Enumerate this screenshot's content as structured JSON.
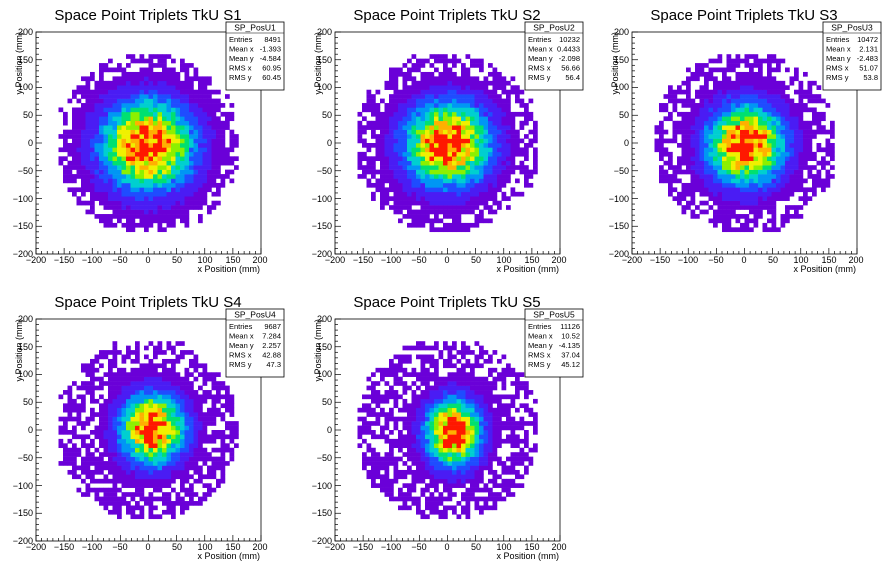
{
  "chart_data": [
    {
      "type": "heatmap",
      "title": "Space Point Triplets TkU S1",
      "xlabel": "x Position (mm)",
      "ylabel": "y Position (mm)",
      "xlim": [
        -200,
        200
      ],
      "ylim": [
        -200,
        200
      ],
      "xticks": [
        "−200",
        "−150",
        "−100",
        "−50",
        "0",
        "50",
        "100",
        "150",
        "200"
      ],
      "yticks": [
        "200",
        "150",
        "100",
        "50",
        "0",
        "−50",
        "−100",
        "−150",
        "−200"
      ],
      "stats": {
        "name": "SP_PosU1",
        "rows": [
          {
            "label": "Entries",
            "value": "8491"
          },
          {
            "label": "Mean x",
            "value": "-1.393"
          },
          {
            "label": "Mean y",
            "value": "-4.584"
          },
          {
            "label": "RMS x",
            "value": "60.95"
          },
          {
            "label": "RMS y",
            "value": "60.45"
          }
        ]
      },
      "distribution": {
        "radius": 160,
        "mean": [
          -1.393,
          -4.584
        ],
        "rms": [
          60.95,
          60.45
        ],
        "entries": 8491,
        "bin_size": 8
      }
    },
    {
      "type": "heatmap",
      "title": "Space Point Triplets TkU S2",
      "xlabel": "x Position (mm)",
      "ylabel": "y Position (mm)",
      "xlim": [
        -200,
        200
      ],
      "ylim": [
        -200,
        200
      ],
      "xticks": [
        "−200",
        "−150",
        "−100",
        "−50",
        "0",
        "50",
        "100",
        "150",
        "200"
      ],
      "yticks": [
        "200",
        "150",
        "100",
        "50",
        "0",
        "−50",
        "−100",
        "−150",
        "−200"
      ],
      "stats": {
        "name": "SP_PosU2",
        "rows": [
          {
            "label": "Entries",
            "value": "10232"
          },
          {
            "label": "Mean x",
            "value": "0.4433"
          },
          {
            "label": "Mean y",
            "value": "-2.098"
          },
          {
            "label": "RMS x",
            "value": "56.66"
          },
          {
            "label": "RMS y",
            "value": "56.4"
          }
        ]
      },
      "distribution": {
        "radius": 160,
        "mean": [
          0.4433,
          -2.098
        ],
        "rms": [
          56.66,
          56.4
        ],
        "entries": 10232,
        "bin_size": 8
      }
    },
    {
      "type": "heatmap",
      "title": "Space Point Triplets TkU S3",
      "xlabel": "x Position (mm)",
      "ylabel": "y Position (mm)",
      "xlim": [
        -200,
        200
      ],
      "ylim": [
        -200,
        200
      ],
      "xticks": [
        "−200",
        "−150",
        "−100",
        "−50",
        "0",
        "50",
        "100",
        "150",
        "200"
      ],
      "yticks": [
        "200",
        "150",
        "100",
        "50",
        "0",
        "−50",
        "−100",
        "−150",
        "−200"
      ],
      "stats": {
        "name": "SP_PosU3",
        "rows": [
          {
            "label": "Entries",
            "value": "10472"
          },
          {
            "label": "Mean x",
            "value": "2.131"
          },
          {
            "label": "Mean y",
            "value": "-2.483"
          },
          {
            "label": "RMS x",
            "value": "51.07"
          },
          {
            "label": "RMS y",
            "value": "53.8"
          }
        ]
      },
      "distribution": {
        "radius": 160,
        "mean": [
          2.131,
          -2.483
        ],
        "rms": [
          51.07,
          53.8
        ],
        "entries": 10472,
        "bin_size": 8
      }
    },
    {
      "type": "heatmap",
      "title": "Space Point Triplets TkU S4",
      "xlabel": "x Position (mm)",
      "ylabel": "y Position (mm)",
      "xlim": [
        -200,
        200
      ],
      "ylim": [
        -200,
        200
      ],
      "xticks": [
        "−200",
        "−150",
        "−100",
        "−50",
        "0",
        "50",
        "100",
        "150",
        "200"
      ],
      "yticks": [
        "200",
        "150",
        "100",
        "50",
        "0",
        "−50",
        "−100",
        "−150",
        "−200"
      ],
      "stats": {
        "name": "SP_PosU4",
        "rows": [
          {
            "label": "Entries",
            "value": "9687"
          },
          {
            "label": "Mean x",
            "value": "7.284"
          },
          {
            "label": "Mean y",
            "value": "2.257"
          },
          {
            "label": "RMS x",
            "value": "42.88"
          },
          {
            "label": "RMS y",
            "value": "47.3"
          }
        ]
      },
      "distribution": {
        "radius": 160,
        "mean": [
          7.284,
          2.257
        ],
        "rms": [
          42.88,
          47.3
        ],
        "entries": 9687,
        "bin_size": 8
      }
    },
    {
      "type": "heatmap",
      "title": "Space Point Triplets TkU S5",
      "xlabel": "x Position (mm)",
      "ylabel": "y Position (mm)",
      "xlim": [
        -200,
        200
      ],
      "ylim": [
        -200,
        200
      ],
      "xticks": [
        "−200",
        "−150",
        "−100",
        "−50",
        "0",
        "50",
        "100",
        "150",
        "200"
      ],
      "yticks": [
        "200",
        "150",
        "100",
        "50",
        "0",
        "−50",
        "−100",
        "−150",
        "−200"
      ],
      "stats": {
        "name": "SP_PosU5",
        "rows": [
          {
            "label": "Entries",
            "value": "11126"
          },
          {
            "label": "Mean x",
            "value": "10.52"
          },
          {
            "label": "Mean y",
            "value": "-4.135"
          },
          {
            "label": "RMS x",
            "value": "37.04"
          },
          {
            "label": "RMS y",
            "value": "45.12"
          }
        ]
      },
      "distribution": {
        "radius": 160,
        "mean": [
          10.52,
          -4.135
        ],
        "rms": [
          37.04,
          45.12
        ],
        "entries": 11126,
        "bin_size": 8
      }
    }
  ],
  "colors": {
    "palette": [
      "#6a00d8",
      "#4a1cf4",
      "#1f4cff",
      "#0096f4",
      "#00cfd0",
      "#00e070",
      "#8cf000",
      "#f0f000",
      "#ffb000",
      "#ff1800"
    ],
    "axis": "#000000",
    "background": "#ffffff"
  }
}
